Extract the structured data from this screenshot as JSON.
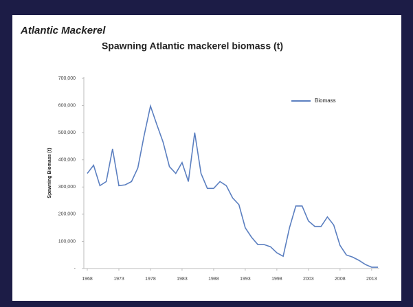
{
  "page_title": "Atlantic Mackerel",
  "chart_data": {
    "type": "line",
    "title": "Spawning Atlantic mackerel biomass (t)",
    "y_label": "Spawning Biomass (t)",
    "x": [
      1968,
      1969,
      1970,
      1971,
      1972,
      1973,
      1974,
      1975,
      1976,
      1977,
      1978,
      1979,
      1980,
      1981,
      1982,
      1983,
      1984,
      1985,
      1986,
      1987,
      1988,
      1989,
      1990,
      1991,
      1992,
      1993,
      1994,
      1995,
      1996,
      1997,
      1998,
      1999,
      2000,
      2001,
      2002,
      2003,
      2004,
      2005,
      2006,
      2007,
      2008,
      2009,
      2010,
      2011,
      2012,
      2013,
      2014
    ],
    "series": [
      {
        "name": "Biomass",
        "color": "#5b7fc0",
        "values": [
          350000,
          380000,
          305000,
          320000,
          440000,
          305000,
          308000,
          320000,
          370000,
          490000,
          598000,
          530000,
          465000,
          375000,
          350000,
          390000,
          320000,
          500000,
          350000,
          295000,
          295000,
          320000,
          305000,
          260000,
          235000,
          150000,
          115000,
          88000,
          88000,
          80000,
          58000,
          45000,
          150000,
          230000,
          230000,
          175000,
          155000,
          155000,
          190000,
          160000,
          85000,
          50000,
          42000,
          30000,
          15000,
          5000,
          5000
        ]
      }
    ],
    "xlim": [
      1968,
      2014
    ],
    "xticks": [
      1968,
      1973,
      1978,
      1983,
      1988,
      1993,
      1998,
      2003,
      2008,
      2013
    ],
    "ylim": [
      0,
      700000
    ],
    "yticks": [
      {
        "value": 0,
        "label": "-"
      },
      {
        "value": 100000,
        "label": "100,000"
      },
      {
        "value": 200000,
        "label": "200,000"
      },
      {
        "value": 300000,
        "label": "300,000"
      },
      {
        "value": 400000,
        "label": "400,000"
      },
      {
        "value": 500000,
        "label": "500,000"
      },
      {
        "value": 600000,
        "label": "600,000"
      },
      {
        "value": 700000,
        "label": "700,000"
      }
    ],
    "grid": false,
    "legend": "upper right"
  }
}
